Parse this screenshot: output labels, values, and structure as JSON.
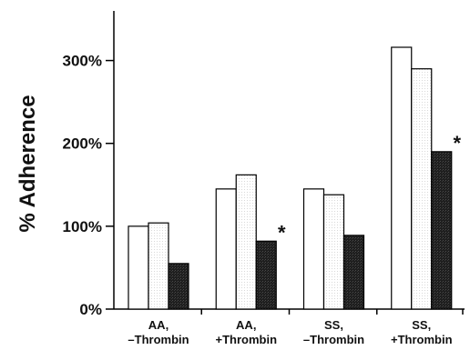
{
  "chart_data": {
    "type": "bar",
    "ylabel": "% Adherence",
    "yticks": [
      "0%",
      "100%",
      "200%",
      "300%"
    ],
    "ytick_values": [
      0,
      100,
      200,
      300
    ],
    "ylim": [
      0,
      350
    ],
    "categories": [
      [
        "AA,",
        "–Thrombin"
      ],
      [
        "AA,",
        "+Thrombin"
      ],
      [
        "SS,",
        "–Thrombin"
      ],
      [
        "SS,",
        "+Thrombin"
      ]
    ],
    "series": [
      {
        "fill": "#ffffff",
        "pattern": "white",
        "values": [
          100,
          145,
          145,
          316
        ]
      },
      {
        "fill": "#ffffff",
        "pattern": "dotted-light",
        "values": [
          104,
          162,
          138,
          290
        ]
      },
      {
        "fill": "#222222",
        "pattern": "dark",
        "values": [
          55,
          82,
          89,
          190
        ]
      }
    ],
    "annotations": [
      {
        "text": "*",
        "category": 1,
        "series": 2
      },
      {
        "text": "*",
        "category": 3,
        "series": 2
      }
    ],
    "grid": false,
    "legend": "none"
  }
}
